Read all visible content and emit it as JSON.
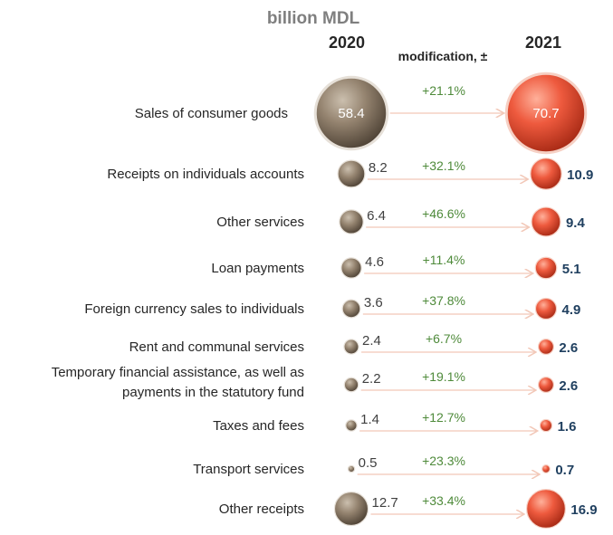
{
  "title": "billion MDL",
  "headers": {
    "year_2020": "2020",
    "year_2021": "2021",
    "modification": "modification, ±"
  },
  "colors": {
    "bubble_2020": "#8a7a68",
    "bubble_2021": "#e8553c",
    "change_text": "#4e8a3a",
    "value_2021_text": "#1f3f5f",
    "arrow": "#f2c8b8"
  },
  "chart_data": {
    "type": "bubble",
    "title": "billion MDL",
    "unit": "billion MDL",
    "series": [
      {
        "name": "2020"
      },
      {
        "name": "2021"
      }
    ],
    "categories": [
      "Sales of consumer goods",
      "Receipts on individuals accounts",
      "Other services",
      "Loan payments",
      "Foreign currency sales to individuals",
      "Rent and communal services",
      "Temporary financial assistance, as well as payments in the statutory fund",
      "Taxes and fees",
      "Transport services",
      "Other receipts"
    ],
    "rows": [
      {
        "label": [
          "Sales of consumer goods"
        ],
        "v2020": 58.4,
        "v2021": 70.7,
        "v2020_text": "58.4",
        "v2021_text": "70.7",
        "change": "+21.1%"
      },
      {
        "label": [
          "Receipts on individuals accounts"
        ],
        "v2020": 8.2,
        "v2021": 10.9,
        "v2020_text": "8.2",
        "v2021_text": "10.9",
        "change": "+32.1%"
      },
      {
        "label": [
          "Other services"
        ],
        "v2020": 6.4,
        "v2021": 9.4,
        "v2020_text": "6.4",
        "v2021_text": "9.4",
        "change": "+46.6%"
      },
      {
        "label": [
          "Loan payments"
        ],
        "v2020": 4.6,
        "v2021": 5.1,
        "v2020_text": "4.6",
        "v2021_text": "5.1",
        "change": "+11.4%"
      },
      {
        "label": [
          "Foreign currency sales to individuals"
        ],
        "v2020": 3.6,
        "v2021": 4.9,
        "v2020_text": "3.6",
        "v2021_text": "4.9",
        "change": "+37.8%"
      },
      {
        "label": [
          "Rent and communal services"
        ],
        "v2020": 2.4,
        "v2021": 2.6,
        "v2020_text": "2.4",
        "v2021_text": "2.6",
        "change": "+6.7%"
      },
      {
        "label": [
          "Temporary financial assistance, as well as",
          "payments in the statutory fund"
        ],
        "v2020": 2.2,
        "v2021": 2.6,
        "v2020_text": "2.2",
        "v2021_text": "2.6",
        "change": "+19.1%"
      },
      {
        "label": [
          "Taxes and fees"
        ],
        "v2020": 1.4,
        "v2021": 1.6,
        "v2020_text": "1.4",
        "v2021_text": "1.6",
        "change": "+12.7%"
      },
      {
        "label": [
          "Transport services"
        ],
        "v2020": 0.5,
        "v2021": 0.7,
        "v2020_text": "0.5",
        "v2021_text": "0.7",
        "change": "+23.3%"
      },
      {
        "label": [
          "Other receipts"
        ],
        "v2020": 12.7,
        "v2021": 16.9,
        "v2020_text": "12.7",
        "v2021_text": "16.9",
        "change": "+33.4%"
      }
    ]
  }
}
